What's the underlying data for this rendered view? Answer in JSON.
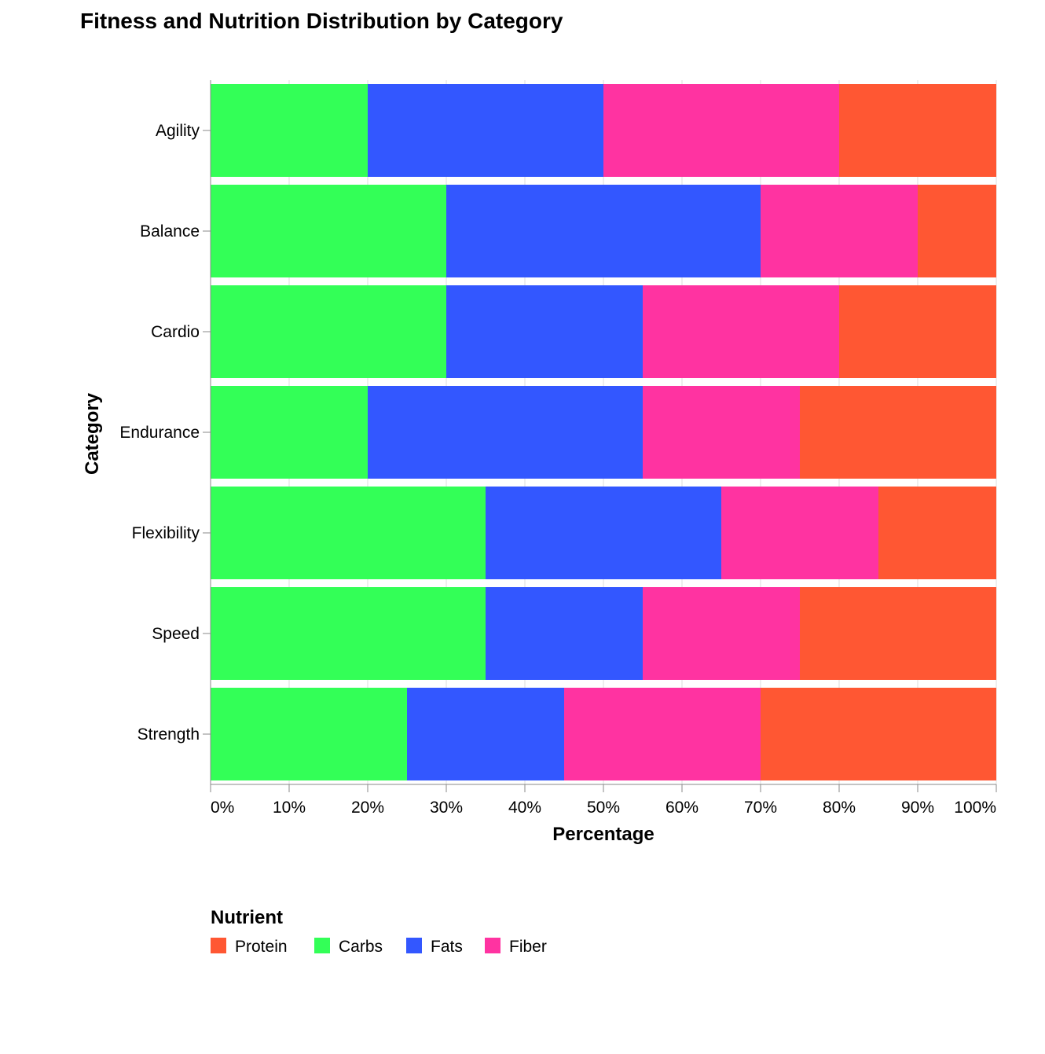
{
  "chart_data": {
    "type": "bar",
    "orientation": "horizontal",
    "stacked": true,
    "normalized": true,
    "title": "Fitness and Nutrition Distribution by Category",
    "xlabel": "Percentage",
    "ylabel": "Category",
    "xlim": [
      0,
      100
    ],
    "x_ticks": [
      "0%",
      "10%",
      "20%",
      "30%",
      "40%",
      "50%",
      "60%",
      "70%",
      "80%",
      "90%",
      "100%"
    ],
    "categories": [
      "Agility",
      "Balance",
      "Cardio",
      "Endurance",
      "Flexibility",
      "Speed",
      "Strength"
    ],
    "stack_order": [
      "Carbs",
      "Fats",
      "Fiber",
      "Protein"
    ],
    "series": [
      {
        "name": "Protein",
        "color": "#ff5733",
        "values": [
          20,
          10,
          20,
          25,
          15,
          25,
          30
        ]
      },
      {
        "name": "Carbs",
        "color": "#33ff57",
        "values": [
          20,
          30,
          30,
          20,
          35,
          35,
          25
        ]
      },
      {
        "name": "Fats",
        "color": "#3357ff",
        "values": [
          30,
          40,
          25,
          35,
          30,
          20,
          20
        ]
      },
      {
        "name": "Fiber",
        "color": "#ff33a1",
        "values": [
          30,
          20,
          25,
          20,
          20,
          20,
          25
        ]
      }
    ],
    "legend": {
      "title": "Nutrient",
      "placement": "bottom",
      "entries": [
        "Protein",
        "Carbs",
        "Fats",
        "Fiber"
      ]
    },
    "grid": true
  }
}
